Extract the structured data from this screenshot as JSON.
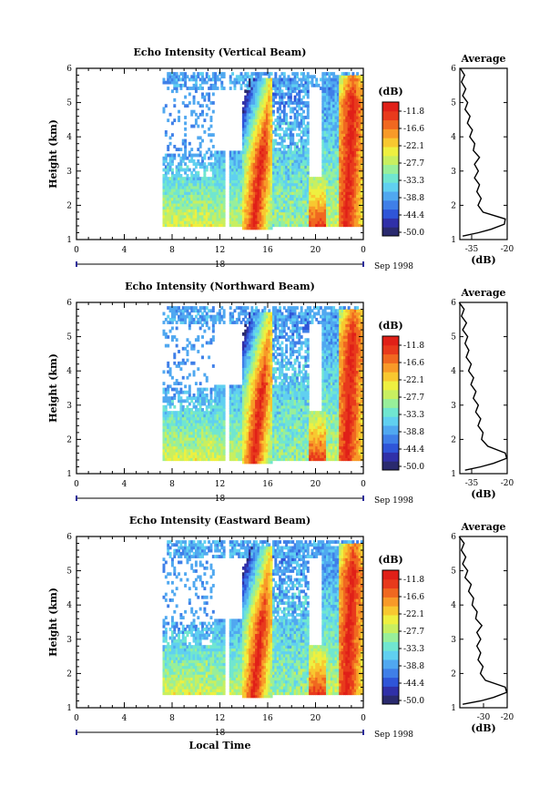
{
  "colors": {
    "scale": [
      "#2a2a6e",
      "#3030a8",
      "#2f55d8",
      "#3f7fe8",
      "#50a8f0",
      "#60d0f0",
      "#70e6d0",
      "#98ef9a",
      "#c8ef60",
      "#eef040",
      "#f8c830",
      "#f89a28",
      "#f06820",
      "#e83a1c",
      "#e02018"
    ]
  },
  "chart_data": [
    {
      "type": "heatmap",
      "title": "Echo Intensity (Vertical Beam)",
      "ylabel": "Height (km)",
      "xlabel": "",
      "x_ticks": [
        "0",
        "4",
        "8",
        "12",
        "16",
        "20",
        "0"
      ],
      "y_ticks": [
        "1",
        "2",
        "3",
        "4",
        "5",
        "6"
      ],
      "xlim": [
        0,
        24
      ],
      "ylim": [
        1,
        6
      ],
      "date_label": "18",
      "date_suffix": "Sep 1998",
      "colorbar": {
        "unit": "(dB)",
        "levels": [
          "-11.8",
          "-16.6",
          "-22.1",
          "-27.7",
          "-33.3",
          "-38.8",
          "-44.4",
          "-50.0"
        ]
      },
      "profile": {
        "title": "Average",
        "xlabel": "(dB)",
        "x_ticks": [
          "-35",
          "-20"
        ],
        "xlim": [
          -40,
          -20
        ],
        "ylim": [
          1,
          6
        ],
        "heights": [
          1.1,
          1.2,
          1.3,
          1.45,
          1.6,
          1.8,
          2.0,
          2.2,
          2.4,
          2.6,
          2.8,
          3.0,
          3.2,
          3.4,
          3.6,
          3.8,
          4.0,
          4.2,
          4.4,
          4.6,
          4.8,
          5.0,
          5.2,
          5.4,
          5.6,
          5.8,
          6.0
        ],
        "values": [
          -38,
          -33,
          -26,
          -22,
          -20,
          -31,
          -31.5,
          -31.8,
          -32,
          -32.5,
          -33,
          -33,
          -33,
          -32.5,
          -33.5,
          -34.5,
          -35,
          -35.5,
          -36,
          -36.5,
          -37,
          -37.5,
          -38,
          -38.3,
          -38.5,
          -38.8,
          -39
        ]
      }
    },
    {
      "type": "heatmap",
      "title": "Echo Intensity (Northward Beam)",
      "ylabel": "Height (km)",
      "xlabel": "",
      "x_ticks": [
        "0",
        "4",
        "8",
        "12",
        "16",
        "20",
        "0"
      ],
      "y_ticks": [
        "1",
        "2",
        "3",
        "4",
        "5",
        "6"
      ],
      "xlim": [
        0,
        24
      ],
      "ylim": [
        1,
        6
      ],
      "date_label": "18",
      "date_suffix": "Sep 1998",
      "colorbar": {
        "unit": "(dB)",
        "levels": [
          "-11.8",
          "-16.6",
          "-22.1",
          "-27.7",
          "-33.3",
          "-38.8",
          "-44.4",
          "-50.0"
        ]
      },
      "profile": {
        "title": "Average",
        "xlabel": "(dB)",
        "x_ticks": [
          "-35",
          "-20"
        ],
        "xlim": [
          -40,
          -20
        ],
        "ylim": [
          1,
          6
        ],
        "heights": [
          1.1,
          1.2,
          1.3,
          1.45,
          1.6,
          1.8,
          2.0,
          2.2,
          2.4,
          2.6,
          2.8,
          3.0,
          3.2,
          3.4,
          3.6,
          3.8,
          4.0,
          4.2,
          4.4,
          4.6,
          4.8,
          5.0,
          5.2,
          5.4,
          5.6,
          5.8,
          6.0
        ],
        "values": [
          -37,
          -32,
          -25,
          -21,
          -20,
          -29,
          -30,
          -31,
          -31.5,
          -32,
          -32.5,
          -33,
          -33.5,
          -34,
          -34.5,
          -35,
          -35.5,
          -36,
          -36.5,
          -37,
          -37,
          -37.5,
          -38,
          -38,
          -38.5,
          -39,
          -39.5
        ]
      }
    },
    {
      "type": "heatmap",
      "title": "Echo Intensity (Eastward Beam)",
      "ylabel": "Height (km)",
      "xlabel": "Local Time",
      "x_ticks": [
        "0",
        "4",
        "8",
        "12",
        "16",
        "20",
        "0"
      ],
      "y_ticks": [
        "1",
        "2",
        "3",
        "4",
        "5",
        "6"
      ],
      "xlim": [
        0,
        24
      ],
      "ylim": [
        1,
        6
      ],
      "date_label": "18",
      "date_suffix": "Sep 1998",
      "colorbar": {
        "unit": "(dB)",
        "levels": [
          "-11.8",
          "-16.6",
          "-22.1",
          "-27.7",
          "-33.3",
          "-38.8",
          "-44.4",
          "-50.0"
        ]
      },
      "profile": {
        "title": "Average",
        "xlabel": "(dB)",
        "x_ticks": [
          "-30",
          "-20"
        ],
        "xlim": [
          -40,
          -20
        ],
        "ylim": [
          1,
          6
        ],
        "heights": [
          1.1,
          1.2,
          1.3,
          1.45,
          1.6,
          1.8,
          2.0,
          2.2,
          2.4,
          2.6,
          2.8,
          3.0,
          3.2,
          3.4,
          3.6,
          3.8,
          4.0,
          4.2,
          4.4,
          4.6,
          4.8,
          5.0,
          5.2,
          5.4,
          5.6,
          5.8,
          6.0
        ],
        "values": [
          -38,
          -32,
          -25,
          -21,
          -20,
          -30,
          -30.5,
          -31,
          -31.5,
          -32,
          -32,
          -32,
          -32,
          -31.5,
          -32.5,
          -33.5,
          -34,
          -35,
          -35.5,
          -36,
          -37,
          -37.5,
          -38,
          -38.3,
          -38.6,
          -39,
          -39.5
        ]
      }
    }
  ]
}
